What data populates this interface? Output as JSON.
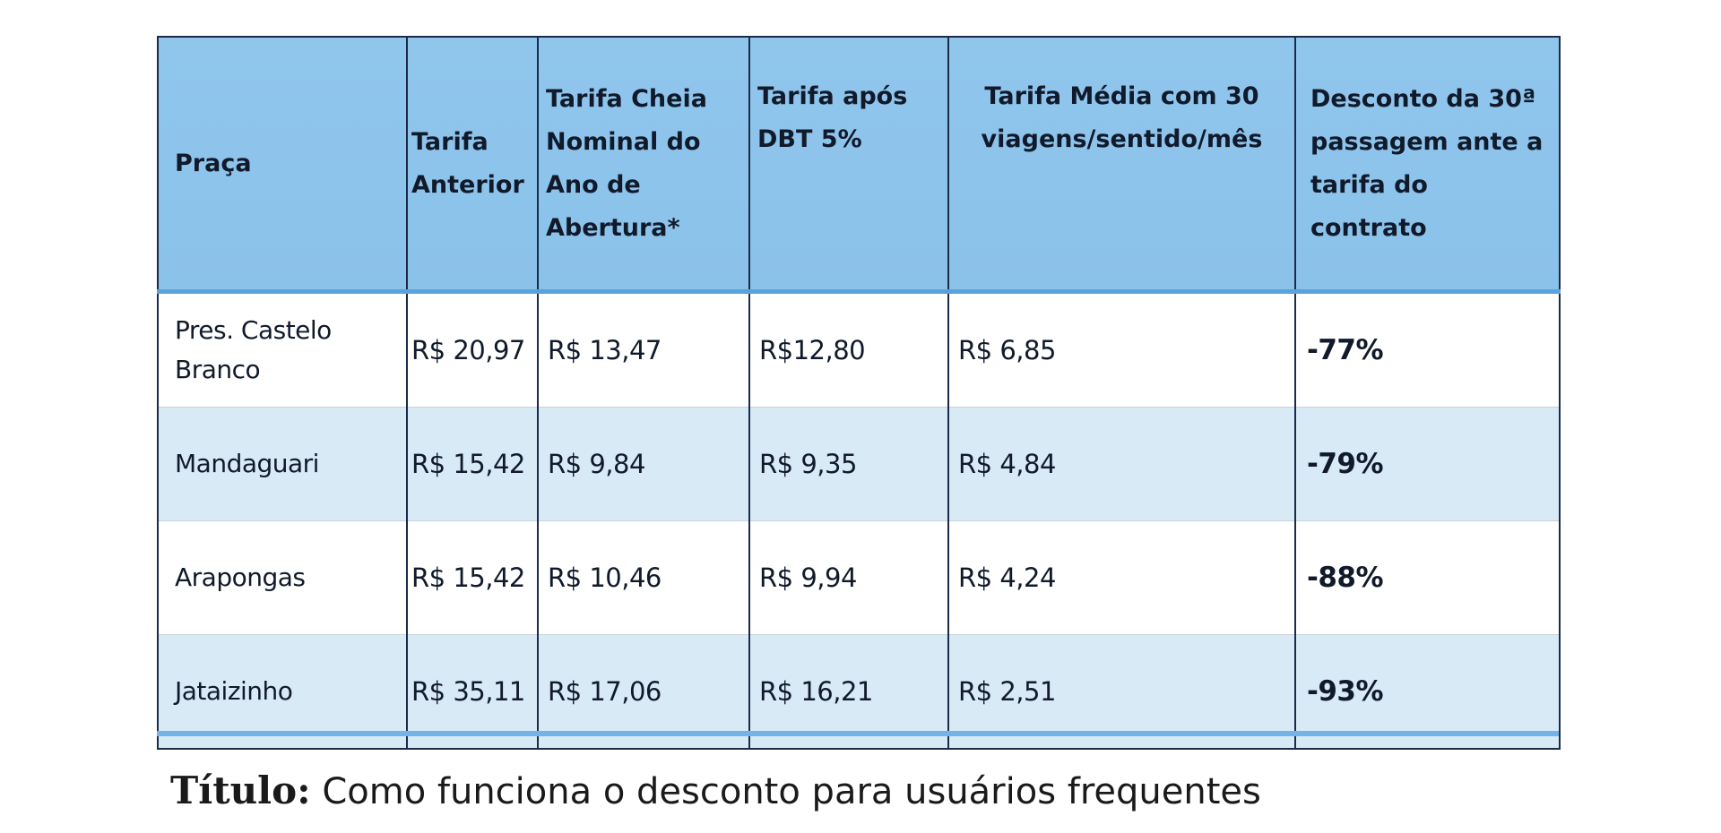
{
  "table": {
    "headers": [
      "Praça",
      "Tarifa Anterior",
      "Tarifa Cheia Nominal do Ano de Abertura*",
      "Tarifa após DBT 5%",
      "Tarifa Média com 30 viagens/sentido/mês",
      "Desconto da 30ª passagem ante a tarifa do contrato"
    ],
    "rows": [
      [
        "Pres. Castelo Branco",
        "R$ 20,97",
        "R$ 13,47",
        "R$12,80",
        "R$ 6,85",
        "-77%"
      ],
      [
        "Mandaguari",
        "R$ 15,42",
        "R$ 9,84",
        "R$ 9,35",
        "R$ 4,84",
        "-79%"
      ],
      [
        "Arapongas",
        "R$ 15,42",
        "R$ 10,46",
        "R$ 9,94",
        "R$ 4,24",
        "-88%"
      ],
      [
        "Jataizinho",
        "R$ 35,11",
        "R$ 17,06",
        "R$ 16,21",
        "R$ 2,51",
        "-93%"
      ]
    ]
  },
  "caption": {
    "label": "Título:",
    "text": " Como funciona o desconto para usuários frequentes"
  },
  "colors": {
    "header_bg": "#8ec5ea",
    "alt_row_bg": "#d9eaf7",
    "border": "#1b2b48",
    "accent_rule": "#72b4e6"
  }
}
